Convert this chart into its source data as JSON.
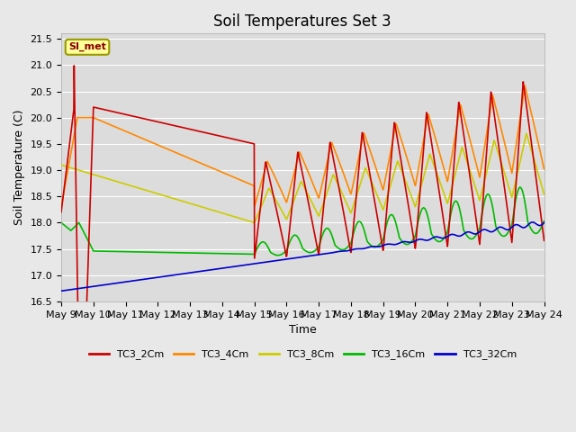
{
  "title": "Soil Temperatures Set 3",
  "xlabel": "Time",
  "ylabel": "Soil Temperature (C)",
  "ylim": [
    16.5,
    21.6
  ],
  "background_color": "#e8e8e8",
  "plot_bg_color": "#dcdcdc",
  "annotation_text": "SI_met",
  "annotation_bg": "#ffff99",
  "annotation_border": "#999900",
  "x_tick_labels": [
    "May 9",
    "May 10",
    "May 11",
    "May 12",
    "May 13",
    "May 14",
    "May 15",
    "May 16",
    "May 17",
    "May 18",
    "May 19",
    "May 20",
    "May 21",
    "May 22",
    "May 23",
    "May 24"
  ],
  "series": {
    "TC3_2Cm": {
      "color": "#cc0000",
      "lw": 1.2
    },
    "TC3_4Cm": {
      "color": "#ff8800",
      "lw": 1.2
    },
    "TC3_8Cm": {
      "color": "#cccc00",
      "lw": 1.2
    },
    "TC3_16Cm": {
      "color": "#00bb00",
      "lw": 1.2
    },
    "TC3_32Cm": {
      "color": "#0000cc",
      "lw": 1.2
    }
  },
  "legend_colors": {
    "TC3_2Cm": "#cc0000",
    "TC3_4Cm": "#ff8800",
    "TC3_8Cm": "#cccc00",
    "TC3_16Cm": "#00bb00",
    "TC3_32Cm": "#0000cc"
  }
}
